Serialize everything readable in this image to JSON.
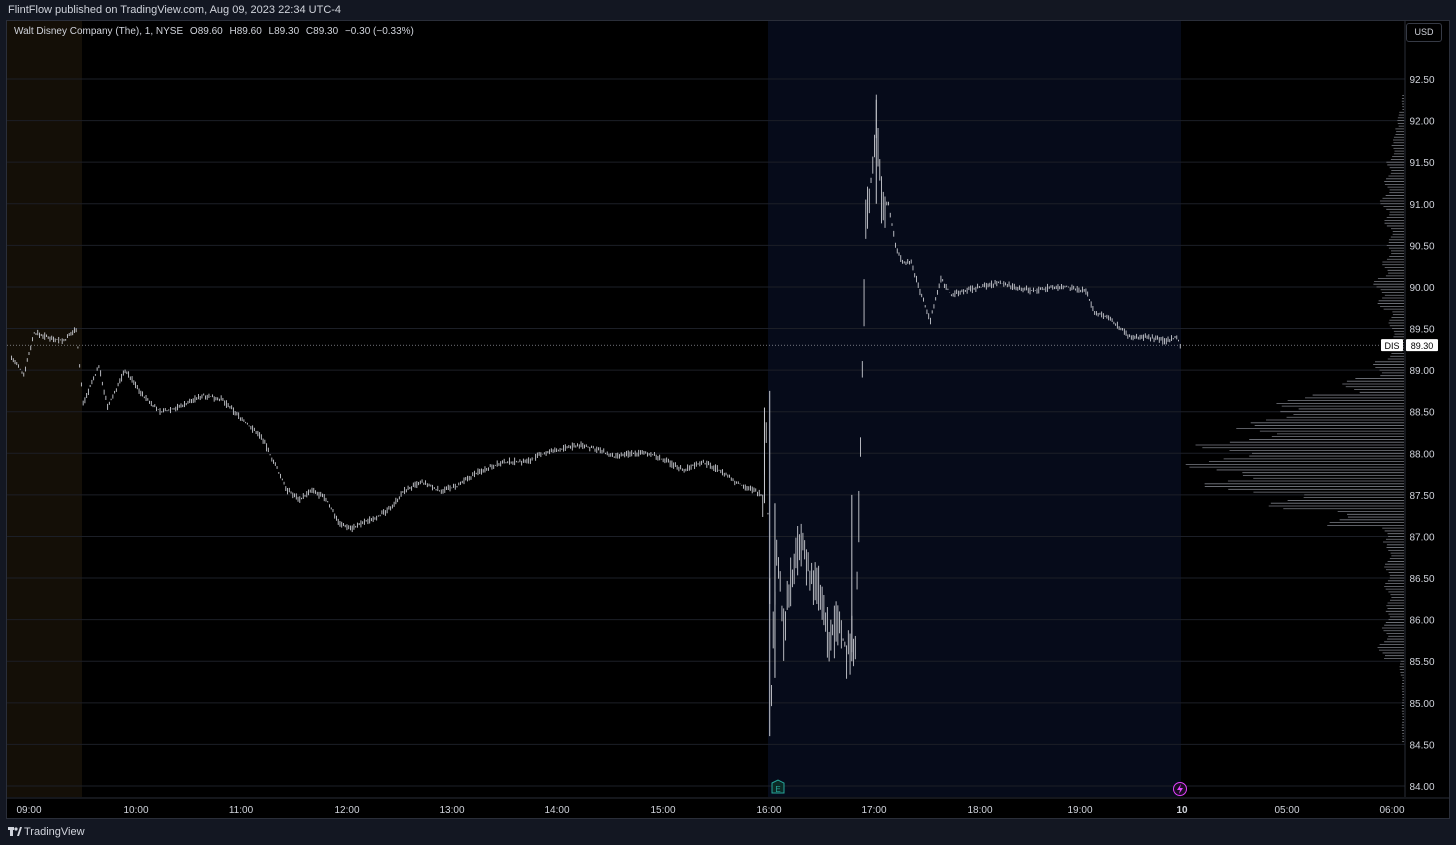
{
  "header": {
    "published": "FlintFlow published on TradingView.com, Aug 09, 2023 22:34 UTC-4"
  },
  "legend": {
    "symbol": "Walt Disney Company (The), 1, NYSE",
    "open": "O89.60",
    "high": "H89.60",
    "low": "L89.30",
    "close": "C89.30",
    "change": "−0.30 (−0.33%)"
  },
  "currency": "USD",
  "last_price": {
    "ticker": "DIS",
    "value": "89.30"
  },
  "events": {
    "earnings_icon": "earnings-icon",
    "split_icon": "lightning-icon"
  },
  "footer": {
    "brand": "TradingView"
  },
  "colors": {
    "background": "#000000",
    "frame": "#131722",
    "bars": "#c9cbd1",
    "premarket_shade": "#140f07",
    "postmarket_shade": "#060b1a",
    "earnings": "#26a69a",
    "split": "#e040fb"
  },
  "chart_data": {
    "type": "ohlc",
    "interval": "1 minute",
    "symbol": "DIS",
    "exchange": "NYSE",
    "currency": "USD",
    "ylim": [
      83.9,
      92.9
    ],
    "y_ticks": [
      "84.00",
      "84.50",
      "85.00",
      "85.50",
      "86.00",
      "86.50",
      "87.00",
      "87.50",
      "88.00",
      "88.50",
      "89.00",
      "89.50",
      "90.00",
      "90.50",
      "91.00",
      "91.50",
      "92.00",
      "92.50"
    ],
    "x_ticks": [
      "09:00",
      "10:00",
      "11:00",
      "12:00",
      "13:00",
      "14:00",
      "15:00",
      "16:00",
      "17:00",
      "18:00",
      "19:00",
      "10",
      "05:00",
      "06:00"
    ],
    "sessions": [
      {
        "name": "pre-market",
        "from": "08:50",
        "to": "09:30"
      },
      {
        "name": "post-market",
        "from": "16:00",
        "to": "19:59"
      }
    ],
    "price_path": [
      {
        "t": "08:50",
        "p": 89.15
      },
      {
        "t": "08:57",
        "p": 88.95
      },
      {
        "t": "09:03",
        "p": 89.45
      },
      {
        "t": "09:10",
        "p": 89.4
      },
      {
        "t": "09:20",
        "p": 89.35
      },
      {
        "t": "09:27",
        "p": 89.5
      },
      {
        "t": "09:31",
        "p": 88.6
      },
      {
        "t": "09:40",
        "p": 89.05
      },
      {
        "t": "09:45",
        "p": 88.55
      },
      {
        "t": "09:55",
        "p": 89.0
      },
      {
        "t": "10:05",
        "p": 88.7
      },
      {
        "t": "10:15",
        "p": 88.5
      },
      {
        "t": "10:25",
        "p": 88.55
      },
      {
        "t": "10:40",
        "p": 88.7
      },
      {
        "t": "10:50",
        "p": 88.65
      },
      {
        "t": "11:05",
        "p": 88.35
      },
      {
        "t": "11:13",
        "p": 88.2
      },
      {
        "t": "11:20",
        "p": 87.9
      },
      {
        "t": "11:28",
        "p": 87.55
      },
      {
        "t": "11:35",
        "p": 87.45
      },
      {
        "t": "11:42",
        "p": 87.55
      },
      {
        "t": "11:50",
        "p": 87.45
      },
      {
        "t": "11:58",
        "p": 87.15
      },
      {
        "t": "12:05",
        "p": 87.1
      },
      {
        "t": "12:15",
        "p": 87.2
      },
      {
        "t": "12:25",
        "p": 87.3
      },
      {
        "t": "12:35",
        "p": 87.55
      },
      {
        "t": "12:45",
        "p": 87.65
      },
      {
        "t": "12:55",
        "p": 87.55
      },
      {
        "t": "13:05",
        "p": 87.6
      },
      {
        "t": "13:15",
        "p": 87.75
      },
      {
        "t": "13:25",
        "p": 87.85
      },
      {
        "t": "13:35",
        "p": 87.9
      },
      {
        "t": "13:45",
        "p": 87.9
      },
      {
        "t": "13:55",
        "p": 88.0
      },
      {
        "t": "14:05",
        "p": 88.05
      },
      {
        "t": "14:15",
        "p": 88.1
      },
      {
        "t": "14:25",
        "p": 88.05
      },
      {
        "t": "14:35",
        "p": 87.95
      },
      {
        "t": "14:45",
        "p": 88.0
      },
      {
        "t": "14:55",
        "p": 88.0
      },
      {
        "t": "15:05",
        "p": 87.9
      },
      {
        "t": "15:15",
        "p": 87.8
      },
      {
        "t": "15:25",
        "p": 87.9
      },
      {
        "t": "15:35",
        "p": 87.8
      },
      {
        "t": "15:45",
        "p": 87.65
      },
      {
        "t": "15:55",
        "p": 87.55
      },
      {
        "t": "16:00",
        "p": 87.5
      },
      {
        "t": "16:02",
        "p": 88.3
      },
      {
        "t": "16:05",
        "p": 85.2
      },
      {
        "t": "16:08",
        "p": 86.9
      },
      {
        "t": "16:12",
        "p": 85.8
      },
      {
        "t": "16:17",
        "p": 86.6
      },
      {
        "t": "16:22",
        "p": 86.9
      },
      {
        "t": "16:28",
        "p": 86.5
      },
      {
        "t": "16:33",
        "p": 86.3
      },
      {
        "t": "16:38",
        "p": 85.7
      },
      {
        "t": "16:43",
        "p": 86.0
      },
      {
        "t": "16:48",
        "p": 85.6
      },
      {
        "t": "16:53",
        "p": 85.8
      },
      {
        "t": "16:56",
        "p": 88.0
      },
      {
        "t": "16:59",
        "p": 90.8
      },
      {
        "t": "17:03",
        "p": 91.4
      },
      {
        "t": "17:05",
        "p": 92.1
      },
      {
        "t": "17:08",
        "p": 91.1
      },
      {
        "t": "17:12",
        "p": 91.0
      },
      {
        "t": "17:16",
        "p": 90.5
      },
      {
        "t": "17:20",
        "p": 90.3
      },
      {
        "t": "17:25",
        "p": 90.3
      },
      {
        "t": "17:30",
        "p": 89.95
      },
      {
        "t": "17:36",
        "p": 89.6
      },
      {
        "t": "17:42",
        "p": 90.1
      },
      {
        "t": "17:48",
        "p": 89.9
      },
      {
        "t": "17:55",
        "p": 89.95
      },
      {
        "t": "18:05",
        "p": 90.0
      },
      {
        "t": "18:15",
        "p": 90.05
      },
      {
        "t": "18:25",
        "p": 90.0
      },
      {
        "t": "18:35",
        "p": 89.95
      },
      {
        "t": "18:45",
        "p": 90.0
      },
      {
        "t": "18:55",
        "p": 90.0
      },
      {
        "t": "19:05",
        "p": 89.95
      },
      {
        "t": "19:10",
        "p": 89.7
      },
      {
        "t": "19:20",
        "p": 89.6
      },
      {
        "t": "19:30",
        "p": 89.4
      },
      {
        "t": "19:40",
        "p": 89.4
      },
      {
        "t": "19:50",
        "p": 89.35
      },
      {
        "t": "19:57",
        "p": 89.4
      },
      {
        "t": "19:59",
        "p": 89.3
      }
    ],
    "volume_profile": [
      {
        "price": 84.6,
        "v": 0.01
      },
      {
        "price": 84.8,
        "v": 0.01
      },
      {
        "price": 85.0,
        "v": 0.01
      },
      {
        "price": 85.2,
        "v": 0.01
      },
      {
        "price": 85.4,
        "v": 0.02
      },
      {
        "price": 85.6,
        "v": 0.12
      },
      {
        "price": 85.8,
        "v": 0.1
      },
      {
        "price": 86.0,
        "v": 0.09
      },
      {
        "price": 86.2,
        "v": 0.08
      },
      {
        "price": 86.4,
        "v": 0.09
      },
      {
        "price": 86.6,
        "v": 0.09
      },
      {
        "price": 86.8,
        "v": 0.08
      },
      {
        "price": 87.0,
        "v": 0.1
      },
      {
        "price": 87.2,
        "v": 0.35
      },
      {
        "price": 87.4,
        "v": 0.62
      },
      {
        "price": 87.6,
        "v": 0.92
      },
      {
        "price": 87.8,
        "v": 1.0
      },
      {
        "price": 88.0,
        "v": 0.95
      },
      {
        "price": 88.2,
        "v": 0.8
      },
      {
        "price": 88.4,
        "v": 0.7
      },
      {
        "price": 88.6,
        "v": 0.58
      },
      {
        "price": 88.8,
        "v": 0.28
      },
      {
        "price": 89.0,
        "v": 0.14
      },
      {
        "price": 89.2,
        "v": 0.08
      },
      {
        "price": 89.4,
        "v": 0.06
      },
      {
        "price": 89.6,
        "v": 0.07
      },
      {
        "price": 89.8,
        "v": 0.12
      },
      {
        "price": 90.0,
        "v": 0.14
      },
      {
        "price": 90.2,
        "v": 0.1
      },
      {
        "price": 90.4,
        "v": 0.08
      },
      {
        "price": 90.6,
        "v": 0.07
      },
      {
        "price": 90.8,
        "v": 0.09
      },
      {
        "price": 91.0,
        "v": 0.11
      },
      {
        "price": 91.2,
        "v": 0.09
      },
      {
        "price": 91.4,
        "v": 0.08
      },
      {
        "price": 91.6,
        "v": 0.06
      },
      {
        "price": 91.8,
        "v": 0.05
      },
      {
        "price": 92.0,
        "v": 0.03
      },
      {
        "price": 92.2,
        "v": 0.01
      }
    ]
  }
}
